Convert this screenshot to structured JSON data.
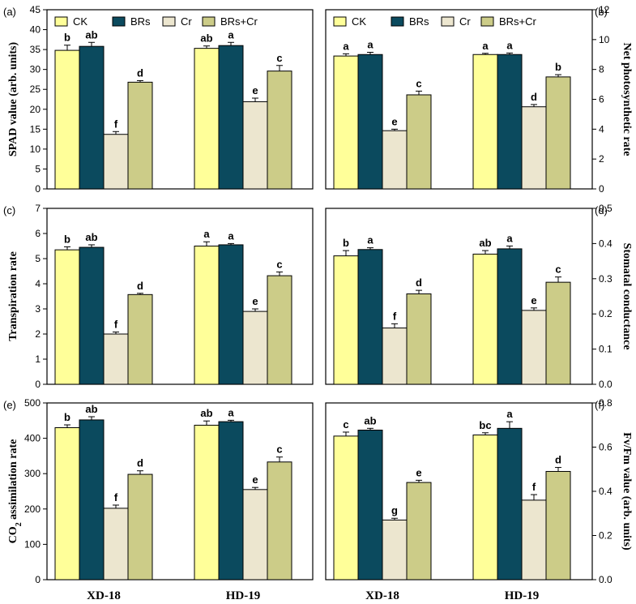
{
  "chart_data": [
    {
      "type": "bar",
      "panel_label": "(a)",
      "ylabel": "SPAD value (arb. units)",
      "ylim": [
        0,
        45
      ],
      "yticks": [
        "0",
        "5",
        "10",
        "15",
        "20",
        "25",
        "30",
        "35",
        "40",
        "45"
      ],
      "categories": [
        "XD-18",
        "HD-19"
      ],
      "axis_side": "left",
      "series": [
        {
          "name": "CK",
          "values": [
            34.8,
            35.3
          ],
          "errors": [
            1.3,
            0.6
          ],
          "letters": [
            "b",
            "ab"
          ]
        },
        {
          "name": "BRs",
          "values": [
            35.8,
            36.0
          ],
          "errors": [
            1.0,
            0.8
          ],
          "letters": [
            "ab",
            "a"
          ]
        },
        {
          "name": "Cr",
          "values": [
            13.7,
            21.9
          ],
          "errors": [
            0.7,
            0.9
          ],
          "letters": [
            "f",
            "e"
          ]
        },
        {
          "name": "BRs+Cr",
          "values": [
            26.8,
            29.6
          ],
          "errors": [
            0.4,
            1.4
          ],
          "letters": [
            "d",
            "c"
          ]
        }
      ]
    },
    {
      "type": "bar",
      "panel_label": "(b)",
      "ylabel": "Net photosynthetic rate",
      "ylim": [
        0,
        12
      ],
      "yticks": [
        "0",
        "2",
        "4",
        "6",
        "8",
        "10",
        "12"
      ],
      "categories": [
        "XD-18",
        "HD-19"
      ],
      "axis_side": "right",
      "series": [
        {
          "name": "CK",
          "values": [
            8.9,
            9.0
          ],
          "errors": [
            0.15,
            0.08
          ],
          "letters": [
            "a",
            "a"
          ]
        },
        {
          "name": "BRs",
          "values": [
            9.0,
            9.0
          ],
          "errors": [
            0.15,
            0.1
          ],
          "letters": [
            "a",
            "a"
          ]
        },
        {
          "name": "Cr",
          "values": [
            3.9,
            5.5
          ],
          "errors": [
            0.1,
            0.15
          ],
          "letters": [
            "e",
            "d"
          ]
        },
        {
          "name": "BRs+Cr",
          "values": [
            6.3,
            7.5
          ],
          "errors": [
            0.25,
            0.15
          ],
          "letters": [
            "c",
            "b"
          ]
        }
      ]
    },
    {
      "type": "bar",
      "panel_label": "(c)",
      "ylabel": "Transpiration rate",
      "ylim": [
        0,
        7
      ],
      "yticks": [
        "0",
        "1",
        "2",
        "3",
        "4",
        "5",
        "6",
        "7"
      ],
      "categories": [
        "XD-18",
        "HD-19"
      ],
      "axis_side": "left",
      "series": [
        {
          "name": "CK",
          "values": [
            5.35,
            5.5
          ],
          "errors": [
            0.12,
            0.17
          ],
          "letters": [
            "b",
            "a"
          ]
        },
        {
          "name": "BRs",
          "values": [
            5.45,
            5.55
          ],
          "errors": [
            0.1,
            0.05
          ],
          "letters": [
            "ab",
            "a"
          ]
        },
        {
          "name": "Cr",
          "values": [
            2.0,
            2.9
          ],
          "errors": [
            0.08,
            0.1
          ],
          "letters": [
            "f",
            "e"
          ]
        },
        {
          "name": "BRs+Cr",
          "values": [
            3.57,
            4.32
          ],
          "errors": [
            0.05,
            0.15
          ],
          "letters": [
            "d",
            "c"
          ]
        }
      ]
    },
    {
      "type": "bar",
      "panel_label": "(d)",
      "ylabel": "Stomatal conductance",
      "ylim": [
        0,
        0.5
      ],
      "yticks": [
        "0.0",
        "0.1",
        "0.2",
        "0.3",
        "0.4",
        "0.5"
      ],
      "categories": [
        "XD-18",
        "HD-19"
      ],
      "axis_side": "right",
      "series": [
        {
          "name": "CK",
          "values": [
            0.365,
            0.37
          ],
          "errors": [
            0.015,
            0.01
          ],
          "letters": [
            "b",
            "ab"
          ]
        },
        {
          "name": "BRs",
          "values": [
            0.383,
            0.385
          ],
          "errors": [
            0.005,
            0.008
          ],
          "letters": [
            "a",
            "a"
          ]
        },
        {
          "name": "Cr",
          "values": [
            0.16,
            0.21
          ],
          "errors": [
            0.012,
            0.007
          ],
          "letters": [
            "f",
            "e"
          ]
        },
        {
          "name": "BRs+Cr",
          "values": [
            0.257,
            0.29
          ],
          "errors": [
            0.01,
            0.015
          ],
          "letters": [
            "d",
            "c"
          ]
        }
      ]
    },
    {
      "type": "bar",
      "panel_label": "(e)",
      "ylabel": "CO2 assimilation rate",
      "ylim": [
        0,
        500
      ],
      "yticks": [
        "0",
        "100",
        "200",
        "300",
        "400",
        "500"
      ],
      "categories": [
        "XD-18",
        "HD-19"
      ],
      "axis_side": "left",
      "series": [
        {
          "name": "CK",
          "values": [
            430,
            437
          ],
          "errors": [
            8,
            12
          ],
          "letters": [
            "b",
            "ab"
          ]
        },
        {
          "name": "BRs",
          "values": [
            452,
            447
          ],
          "errors": [
            9,
            4
          ],
          "letters": [
            "ab",
            "a"
          ]
        },
        {
          "name": "Cr",
          "values": [
            202,
            255
          ],
          "errors": [
            9,
            6
          ],
          "letters": [
            "f",
            "e"
          ]
        },
        {
          "name": "BRs+Cr",
          "values": [
            298,
            333
          ],
          "errors": [
            10,
            14
          ],
          "letters": [
            "d",
            "c"
          ]
        }
      ]
    },
    {
      "type": "bar",
      "panel_label": "(f)",
      "ylabel": "Fv/Fm value (arb. units)",
      "ylim": [
        0,
        0.8
      ],
      "yticks": [
        "0.0",
        "0.2",
        "0.4",
        "0.6",
        "0.8"
      ],
      "categories": [
        "XD-18",
        "HD-19"
      ],
      "axis_side": "right",
      "series": [
        {
          "name": "CK",
          "values": [
            0.65,
            0.655
          ],
          "errors": [
            0.018,
            0.01
          ],
          "letters": [
            "c",
            "bc"
          ]
        },
        {
          "name": "BRs",
          "values": [
            0.677,
            0.685
          ],
          "errors": [
            0.008,
            0.03
          ],
          "letters": [
            "ab",
            "a"
          ]
        },
        {
          "name": "Cr",
          "values": [
            0.27,
            0.36
          ],
          "errors": [
            0.008,
            0.025
          ],
          "letters": [
            "g",
            "f"
          ]
        },
        {
          "name": "BRs+Cr",
          "values": [
            0.44,
            0.49
          ],
          "errors": [
            0.01,
            0.018
          ],
          "letters": [
            "e",
            "d"
          ]
        }
      ]
    }
  ],
  "legend": [
    {
      "name": "CK",
      "color": "#ffff99"
    },
    {
      "name": "BRs",
      "color": "#0b4a5e"
    },
    {
      "name": "Cr",
      "color": "#ece6cf"
    },
    {
      "name": "BRs+Cr",
      "color": "#cccc88"
    }
  ],
  "colors": {
    "CK": "#ffff99",
    "BRs": "#0b4a5e",
    "Cr": "#ece6cf",
    "BRs+Cr": "#cccc88"
  }
}
